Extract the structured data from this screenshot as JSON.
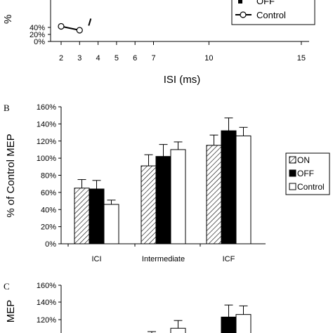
{
  "chart_data": [
    {
      "panel": "",
      "type": "line",
      "xlabel": "ISI (ms)",
      "ylabel": "%",
      "xticks": [
        2,
        3,
        4,
        5,
        6,
        7,
        10,
        15
      ],
      "yticks": [
        "40%",
        "20%",
        "0%"
      ],
      "series": [
        {
          "name": "OFF",
          "x": [
            3
          ],
          "y": [
            45
          ]
        },
        {
          "name": "Control",
          "x": [
            2,
            3
          ],
          "y": [
            43,
            32
          ]
        }
      ]
    },
    {
      "panel": "B",
      "type": "bar",
      "ylabel": "% of Control MEP",
      "ylim": [
        0,
        160
      ],
      "yticks": [
        "0%",
        "20%",
        "40%",
        "60%",
        "80%",
        "100%",
        "120%",
        "140%",
        "160%"
      ],
      "categories": [
        "ICI",
        "Intermediate",
        "ICF"
      ],
      "legend": "right",
      "series": [
        {
          "name": "ON",
          "values": [
            65,
            91,
            115
          ],
          "err": [
            10,
            13,
            12
          ]
        },
        {
          "name": "OFF",
          "values": [
            64,
            102,
            132
          ],
          "err": [
            10,
            14,
            15
          ]
        },
        {
          "name": "Control",
          "values": [
            46,
            110,
            126
          ],
          "err": [
            5,
            9,
            10
          ]
        }
      ]
    },
    {
      "panel": "C",
      "type": "bar",
      "ylabel": "MEP",
      "ylim": [
        0,
        160
      ],
      "yticks": [
        "160%",
        "140%",
        "120%"
      ],
      "series": [
        {
          "name": "OFF",
          "values": [
            null,
            102,
            123
          ],
          "err": [
            null,
            null,
            14
          ]
        },
        {
          "name": "Control",
          "values": [
            null,
            110,
            126
          ],
          "err": [
            null,
            9,
            10
          ]
        }
      ]
    }
  ]
}
